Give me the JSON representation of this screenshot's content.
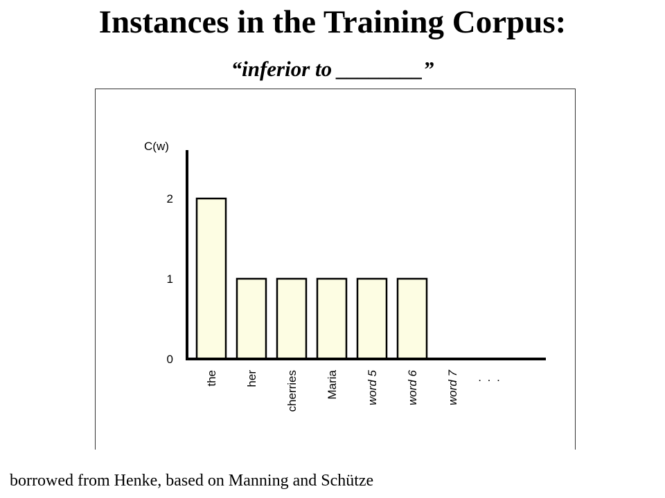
{
  "slide": {
    "title": "Instances in the Training Corpus:",
    "subtitle": "“inferior to ________”",
    "caption": "borrowed from Henke, based on Manning and Schütze"
  },
  "colors": {
    "bar_fill": "#fdfde3",
    "axis": "#000000"
  },
  "chart_data": {
    "type": "bar",
    "ylabel": "C(w)",
    "xlabel": "",
    "title": "",
    "categories": [
      {
        "label": "the",
        "italic": false
      },
      {
        "label": "her",
        "italic": false
      },
      {
        "label": "cherries",
        "italic": false
      },
      {
        "label": "Maria",
        "italic": false
      },
      {
        "label": "word 5",
        "italic": true
      },
      {
        "label": "word 6",
        "italic": true
      },
      {
        "label": "word 7",
        "italic": true
      },
      {
        "label": ". . .",
        "italic": false
      }
    ],
    "values": [
      2,
      1,
      1,
      1,
      1,
      1,
      0,
      null
    ],
    "yticks": [
      "0",
      "1",
      "2"
    ],
    "ylim": [
      0,
      2.6
    ],
    "grid": false,
    "legend": "none"
  }
}
